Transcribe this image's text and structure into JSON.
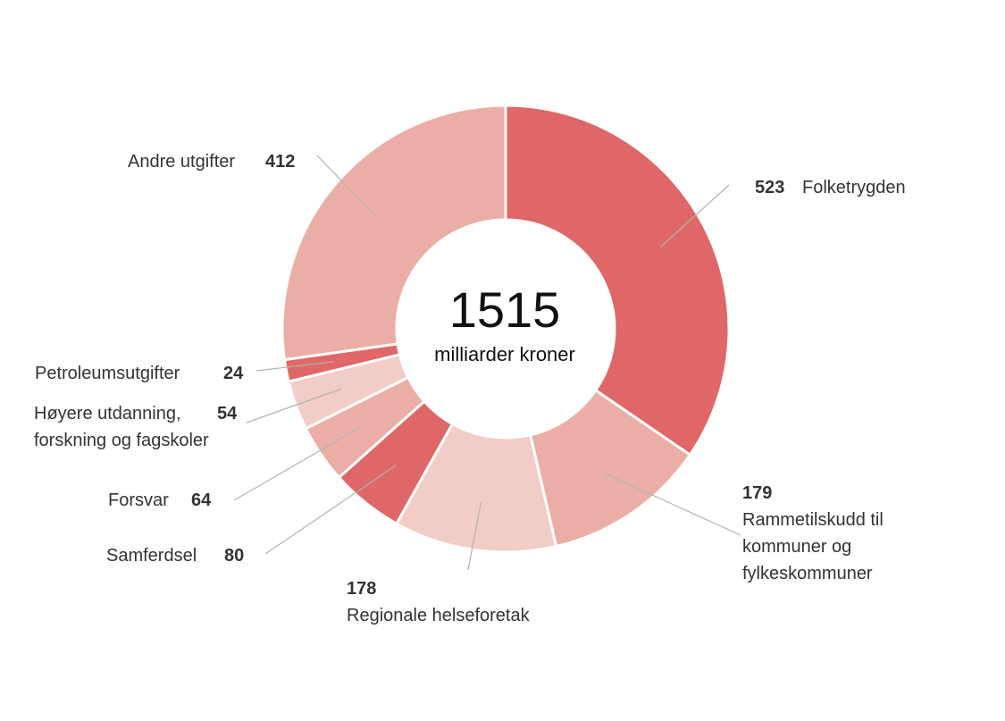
{
  "chart_data": {
    "type": "pie",
    "variant": "donut",
    "center": {
      "total": "1515",
      "unit": "milliarder kroner"
    },
    "slices": [
      {
        "value": 523,
        "value_label": "523",
        "label": "Folketrygden",
        "color": "#df6767"
      },
      {
        "value": 179,
        "value_label": "179",
        "label": "Rammetilskudd til kommuner og fylkeskommuner",
        "color": "#ebaea6"
      },
      {
        "value": 178,
        "value_label": "178",
        "label": "Regionale helseforetak",
        "color": "#f2ccc6"
      },
      {
        "value": 80,
        "value_label": "80",
        "label": "Samferdsel",
        "color": "#df6767"
      },
      {
        "value": 64,
        "value_label": "64",
        "label": "Forsvar",
        "color": "#ebaea6"
      },
      {
        "value": 54,
        "value_label": "54",
        "label": "Høyere utdanning, forskning og fagskoler",
        "color": "#f2ccc6"
      },
      {
        "value": 24,
        "value_label": "24",
        "label": "Petroleumsutgifter",
        "color": "#df6767"
      },
      {
        "value": 412,
        "value_label": "412",
        "label": "Andre utgifter",
        "color": "#ebaea6"
      }
    ]
  }
}
